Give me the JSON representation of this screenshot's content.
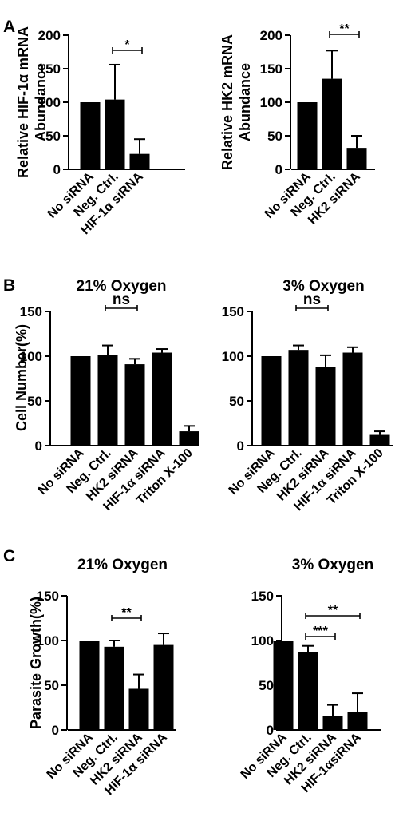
{
  "panel_letters": [
    "A",
    "B",
    "C"
  ],
  "chart_data": [
    {
      "type": "bar",
      "panel": "A",
      "title": "",
      "ylabel": "Relative HIF-1α mRNA Abundance",
      "ylabel_lines": [
        "Relative HIF-1α mRNA",
        "Abundance"
      ],
      "ylim": [
        0,
        200
      ],
      "yticks": [
        0,
        50,
        100,
        150,
        200
      ],
      "categories": [
        "No siRNA",
        "Neg. Ctrl.",
        "HIF-1α siRNA"
      ],
      "values": [
        100,
        104,
        23
      ],
      "errors": [
        0,
        52,
        22
      ],
      "significance": [
        {
          "from": 1,
          "to": 2,
          "label": "*"
        }
      ]
    },
    {
      "type": "bar",
      "panel": "A",
      "title": "",
      "ylabel": "Relative HK2 mRNA Abundance",
      "ylabel_lines": [
        "Relative HK2 mRNA",
        "Abundance"
      ],
      "ylim": [
        0,
        200
      ],
      "yticks": [
        0,
        50,
        100,
        150,
        200
      ],
      "categories": [
        "No siRNA",
        "Neg. Ctrl.",
        "HK2 siRNA"
      ],
      "values": [
        100,
        135,
        32
      ],
      "errors": [
        0,
        42,
        18
      ],
      "significance": [
        {
          "from": 1,
          "to": 2,
          "label": "**"
        }
      ]
    },
    {
      "type": "bar",
      "panel": "B",
      "title": "21% Oxygen",
      "ylabel": "Cell Number(%)",
      "ylabel_lines": [
        "Cell Number(%)"
      ],
      "ylim": [
        0,
        150
      ],
      "yticks": [
        0,
        50,
        100,
        150
      ],
      "categories": [
        "No siRNA",
        "Neg. Ctrl.",
        "HK2 siRNA",
        "HIF-1α siRNA",
        "Triton X-100"
      ],
      "values": [
        100,
        101,
        91,
        104,
        16
      ],
      "errors": [
        0,
        11,
        6,
        4,
        6
      ],
      "significance": [
        {
          "from": 1,
          "to": 2,
          "label": "ns"
        }
      ]
    },
    {
      "type": "bar",
      "panel": "B",
      "title": "3% Oxygen",
      "ylabel": "",
      "ylabel_lines": [],
      "ylim": [
        0,
        150
      ],
      "yticks": [
        0,
        50,
        100,
        150
      ],
      "categories": [
        "No siRNA",
        "Neg. Ctrl.",
        "HK2 siRNA",
        "HIF-1α siRNA",
        "Triton X-100"
      ],
      "values": [
        100,
        107,
        88,
        104,
        12
      ],
      "errors": [
        0,
        5,
        13,
        6,
        4
      ],
      "significance": [
        {
          "from": 1,
          "to": 2,
          "label": "ns"
        }
      ]
    },
    {
      "type": "bar",
      "panel": "C",
      "title": "21% Oxygen",
      "ylabel": "Parasite Growth(%)",
      "ylabel_lines": [
        "Parasite Growth(%)"
      ],
      "ylim": [
        0,
        150
      ],
      "yticks": [
        0,
        50,
        100,
        150
      ],
      "categories": [
        "No siRNA",
        "Neg. Ctrl.",
        "HK2 siRNA",
        "HIF-1α siRNA"
      ],
      "values": [
        100,
        93,
        46,
        95
      ],
      "errors": [
        0,
        7,
        16,
        13
      ],
      "significance": [
        {
          "from": 1,
          "to": 2,
          "label": "**"
        }
      ]
    },
    {
      "type": "bar",
      "panel": "C",
      "title": "3% Oxygen",
      "ylabel": "",
      "ylabel_lines": [],
      "ylim": [
        0,
        150
      ],
      "yticks": [
        0,
        50,
        100,
        150
      ],
      "categories": [
        "No siRNA",
        "Neg. Ctrl.",
        "HK2 siRNA",
        "HIF-1αsiRNA"
      ],
      "values": [
        100,
        87,
        16,
        20
      ],
      "errors": [
        0,
        7,
        12,
        21
      ],
      "significance": [
        {
          "from": 1,
          "to": 2,
          "label": "***"
        },
        {
          "from": 1,
          "to": 3,
          "label": "**"
        }
      ]
    }
  ]
}
